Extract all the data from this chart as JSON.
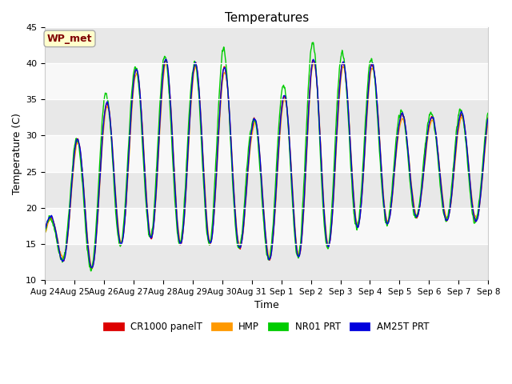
{
  "title": "Temperatures",
  "xlabel": "Time",
  "ylabel": "Temperature (C)",
  "ylim": [
    10,
    45
  ],
  "yticks": [
    10,
    15,
    20,
    25,
    30,
    35,
    40,
    45
  ],
  "annotation_text": "WP_met",
  "annotation_bg": "#ffffcc",
  "annotation_border": "#aaaaaa",
  "annotation_text_color": "#800000",
  "legend_labels": [
    "CR1000 panelT",
    "HMP",
    "NR01 PRT",
    "AM25T PRT"
  ],
  "line_colors": [
    "#dd0000",
    "#ff9900",
    "#00cc00",
    "#0000dd"
  ],
  "line_width": 1.0,
  "fig_bg_color": "#ffffff",
  "plot_bg_color": "#ffffff",
  "x_tick_labels": [
    "Aug 24",
    "Aug 25",
    "Aug 26",
    "Aug 27",
    "Aug 28",
    "Aug 29",
    "Aug 30",
    "Aug 31",
    "Sep 1",
    "Sep 2",
    "Sep 3",
    "Sep 4",
    "Sep 5",
    "Sep 6",
    "Sep 7",
    "Sep 8"
  ],
  "num_days": 15,
  "points_per_day": 96,
  "band_colors": [
    "#e8e8e8",
    "#f8f8f8"
  ],
  "daily_peaks_cr1000": [
    17,
    29,
    34,
    39,
    40.5,
    40,
    40,
    32,
    35,
    40.5,
    40,
    40.5,
    33,
    32.5,
    33,
    34
  ],
  "daily_troughs_cr1000": [
    15,
    11,
    12,
    17,
    15,
    15,
    15,
    14,
    12,
    14,
    15,
    19,
    17,
    20,
    17,
    19
  ],
  "nro1_extra_peaks": [
    0,
    0,
    1.5,
    0.5,
    0.5,
    0,
    2.5,
    0,
    1.5,
    2.5,
    1.5,
    0.5,
    0.5,
    0.5,
    0.5,
    0
  ]
}
